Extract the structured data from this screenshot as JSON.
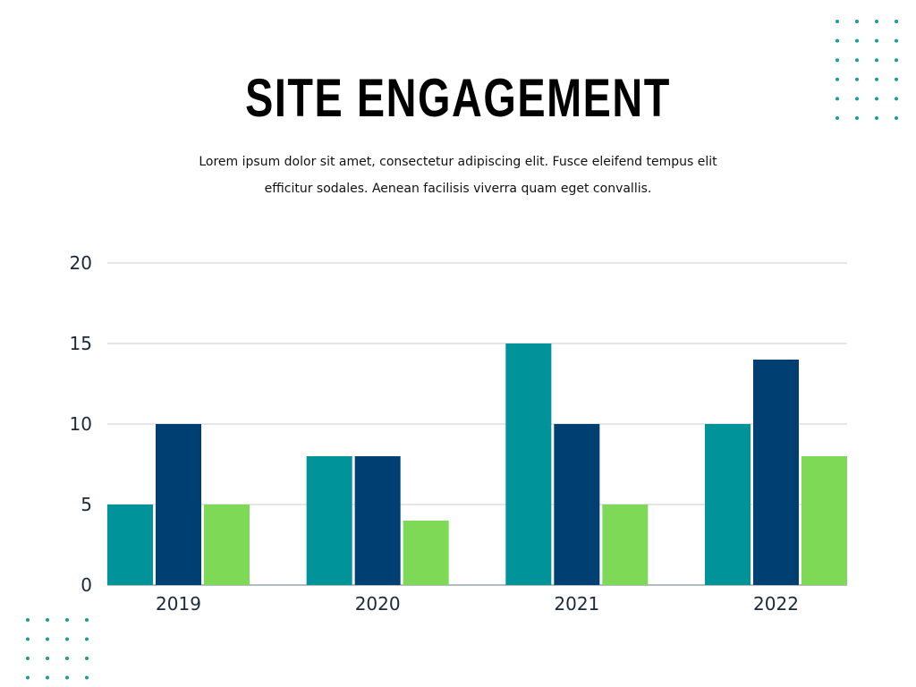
{
  "title": "SITE ENGAGEMENT",
  "subtitle": "Lorem ipsum dolor sit amet, consectetur adipiscing elit. Fusce eleifend tempus elit efficitur sodales. Aenean facilisis viverra quam eget convallis.",
  "colors": {
    "dots": "#1a9c9a",
    "series": [
      "#00939a",
      "#003f72",
      "#7ed957"
    ],
    "grid": "#cccccc",
    "axis_text": "#1b2a3a"
  },
  "chart_data": {
    "type": "bar",
    "categories": [
      "2019",
      "2020",
      "2021",
      "2022"
    ],
    "series": [
      {
        "values": [
          5,
          8,
          15,
          10
        ]
      },
      {
        "values": [
          10,
          8,
          10,
          14
        ]
      },
      {
        "values": [
          5,
          4,
          5,
          8
        ]
      }
    ],
    "ylim": [
      0,
      20
    ],
    "yticks": [
      0,
      5,
      10,
      15,
      20
    ],
    "grid": true,
    "legend": "none"
  }
}
